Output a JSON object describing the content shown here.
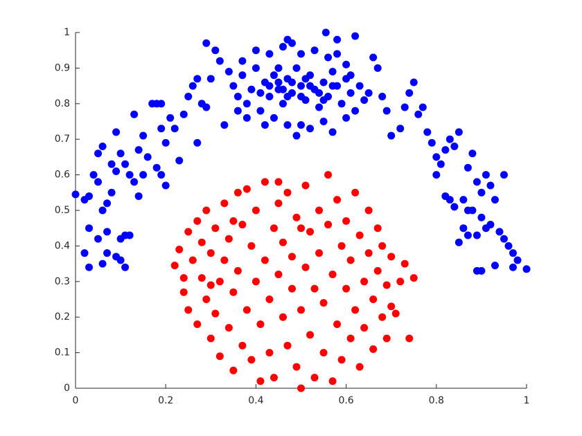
{
  "chart_data": {
    "type": "scatter",
    "xlim": [
      0,
      1
    ],
    "ylim": [
      0,
      1
    ],
    "xticks": [
      0,
      0.2,
      0.4,
      0.6,
      0.8,
      1
    ],
    "yticks": [
      0,
      0.1,
      0.2,
      0.3,
      0.4,
      0.5,
      0.6,
      0.7,
      0.8,
      0.9,
      1
    ],
    "series": [
      {
        "color": "#0000ff",
        "x": [
          0,
          0.02,
          0.03,
          0.02,
          0.03,
          0.06,
          0.07,
          0.05,
          0.03,
          0.09,
          0.1,
          0.11,
          0.1,
          0.11,
          0.12,
          0.07,
          0.06,
          0.07,
          0.08,
          0.05,
          0.04,
          0.08,
          0.09,
          0.1,
          0.11,
          0.12,
          0.13,
          0.14,
          0.15,
          0.14,
          0.16,
          0.15,
          0.13,
          0.06,
          0.05,
          0.09,
          0.18,
          0.19,
          0.2,
          0.2,
          0.19,
          0.22,
          0.23,
          0.17,
          0.18,
          0.19,
          0.21,
          0.24,
          0.25,
          0.26,
          0.27,
          0.28,
          0.27,
          0.29,
          0.29,
          0.3,
          0.31,
          0.32,
          0.33,
          0.34,
          0.35,
          0.36,
          0.37,
          0.38,
          0.39,
          0.4,
          0.41,
          0.42,
          0.43,
          0.44,
          0.45,
          0.46,
          0.47,
          0.48,
          0.49,
          0.5,
          0.51,
          0.52,
          0.53,
          0.54,
          0.55,
          0.56,
          0.57,
          0.58,
          0.59,
          0.6,
          0.61,
          0.62,
          0.63,
          0.64,
          0.4,
          0.43,
          0.46,
          0.48,
          0.5,
          0.53,
          0.555,
          0.56,
          0.58,
          0.6,
          0.38,
          0.42,
          0.44,
          0.47,
          0.49,
          0.5,
          0.52,
          0.55,
          0.57,
          0.6,
          0.36,
          0.37,
          0.41,
          0.45,
          0.47,
          0.51,
          0.54,
          0.57,
          0.61,
          0.65,
          0.45,
          0.46,
          0.48,
          0.5,
          0.52,
          0.43,
          0.55,
          0.62,
          0.58,
          0.47,
          0.66,
          0.67,
          0.68,
          0.69,
          0.7,
          0.72,
          0.73,
          0.74,
          0.75,
          0.76,
          0.77,
          0.78,
          0.79,
          0.8,
          0.81,
          0.82,
          0.83,
          0.84,
          0.85,
          0.8,
          0.82,
          0.83,
          0.86,
          0.87,
          0.88,
          0.89,
          0.9,
          0.91,
          0.92,
          0.93,
          0.95,
          0.88,
          0.9,
          0.91,
          0.86,
          0.87,
          0.85,
          0.89,
          0.92,
          0.94,
          0.95,
          0.96,
          0.97,
          0.98,
          1.0,
          0.97,
          0.93,
          0.89,
          0.9,
          0.87,
          0.84
        ],
        "values": [
          0.545,
          0.53,
          0.54,
          0.38,
          0.34,
          0.35,
          0.38,
          0.42,
          0.45,
          0.37,
          0.36,
          0.34,
          0.42,
          0.43,
          0.43,
          0.44,
          0.5,
          0.52,
          0.55,
          0.58,
          0.6,
          0.63,
          0.61,
          0.66,
          0.63,
          0.6,
          0.58,
          0.54,
          0.6,
          0.67,
          0.65,
          0.71,
          0.77,
          0.68,
          0.66,
          0.72,
          0.62,
          0.6,
          0.57,
          0.69,
          0.73,
          0.73,
          0.64,
          0.8,
          0.8,
          0.8,
          0.76,
          0.77,
          0.82,
          0.85,
          0.87,
          0.8,
          0.69,
          0.79,
          0.97,
          0.87,
          0.95,
          0.92,
          0.74,
          0.89,
          0.85,
          0.82,
          0.88,
          0.8,
          0.84,
          0.9,
          0.78,
          0.86,
          0.82,
          0.88,
          0.84,
          0.8,
          0.87,
          0.83,
          0.9,
          0.85,
          0.81,
          0.88,
          0.84,
          0.79,
          0.86,
          0.82,
          0.89,
          0.85,
          0.8,
          0.87,
          0.83,
          0.78,
          0.85,
          0.81,
          0.95,
          0.94,
          0.96,
          0.97,
          0.94,
          0.95,
          1.0,
          0.93,
          0.94,
          0.91,
          0.76,
          0.74,
          0.76,
          0.74,
          0.71,
          0.74,
          0.73,
          0.75,
          0.72,
          0.76,
          0.78,
          0.92,
          0.83,
          0.9,
          0.82,
          0.87,
          0.83,
          0.85,
          0.88,
          0.83,
          0.86,
          0.84,
          0.86,
          0.82,
          0.85,
          0.85,
          0.81,
          0.99,
          0.98,
          0.98,
          0.93,
          0.9,
          0.82,
          0.78,
          0.71,
          0.73,
          0.79,
          0.83,
          0.86,
          0.77,
          0.79,
          0.72,
          0.69,
          0.65,
          0.63,
          0.67,
          0.7,
          0.68,
          0.72,
          0.6,
          0.54,
          0.53,
          0.53,
          0.62,
          0.66,
          0.58,
          0.55,
          0.6,
          0.57,
          0.53,
          0.6,
          0.5,
          0.48,
          0.45,
          0.45,
          0.43,
          0.41,
          0.43,
          0.46,
          0.44,
          0.42,
          0.4,
          0.38,
          0.36,
          0.335,
          0.34,
          0.345,
          0.33,
          0.33,
          0.5,
          0.51
        ]
      },
      {
        "color": "#ff0000",
        "x": [
          0.22,
          0.23,
          0.24,
          0.24,
          0.25,
          0.25,
          0.26,
          0.27,
          0.27,
          0.28,
          0.28,
          0.29,
          0.29,
          0.3,
          0.3,
          0.31,
          0.31,
          0.32,
          0.32,
          0.33,
          0.33,
          0.34,
          0.34,
          0.35,
          0.35,
          0.36,
          0.36,
          0.37,
          0.37,
          0.38,
          0.38,
          0.39,
          0.39,
          0.4,
          0.4,
          0.41,
          0.41,
          0.42,
          0.42,
          0.43,
          0.43,
          0.44,
          0.44,
          0.45,
          0.45,
          0.46,
          0.46,
          0.47,
          0.47,
          0.48,
          0.48,
          0.49,
          0.49,
          0.5,
          0.5,
          0.51,
          0.51,
          0.52,
          0.52,
          0.53,
          0.53,
          0.54,
          0.54,
          0.55,
          0.55,
          0.56,
          0.56,
          0.57,
          0.57,
          0.58,
          0.58,
          0.59,
          0.59,
          0.6,
          0.6,
          0.61,
          0.61,
          0.62,
          0.62,
          0.63,
          0.63,
          0.64,
          0.64,
          0.65,
          0.65,
          0.66,
          0.66,
          0.67,
          0.67,
          0.68,
          0.68,
          0.69,
          0.69,
          0.7,
          0.7,
          0.71,
          0.72,
          0.73,
          0.74,
          0.75,
          0.3,
          0.35,
          0.45,
          0.5
        ],
        "values": [
          0.345,
          0.39,
          0.31,
          0.27,
          0.44,
          0.22,
          0.36,
          0.47,
          0.18,
          0.31,
          0.41,
          0.25,
          0.5,
          0.14,
          0.38,
          0.45,
          0.21,
          0.09,
          0.3,
          0.52,
          0.36,
          0.17,
          0.42,
          0.05,
          0.27,
          0.55,
          0.33,
          0.12,
          0.46,
          0.22,
          0.56,
          0.4,
          0.08,
          0.3,
          0.5,
          0.02,
          0.18,
          0.36,
          0.58,
          0.25,
          0.1,
          0.45,
          0.03,
          0.32,
          0.52,
          0.2,
          0.41,
          0.12,
          0.55,
          0.28,
          0.37,
          0.06,
          0.48,
          0.0,
          0.22,
          0.34,
          0.57,
          0.15,
          0.44,
          0.03,
          0.28,
          0.5,
          0.38,
          0.1,
          0.24,
          0.6,
          0.46,
          0.32,
          0.02,
          0.18,
          0.53,
          0.4,
          0.08,
          0.28,
          0.47,
          0.14,
          0.36,
          0.55,
          0.22,
          0.06,
          0.43,
          0.3,
          0.17,
          0.5,
          0.38,
          0.11,
          0.25,
          0.45,
          0.33,
          0.2,
          0.4,
          0.14,
          0.29,
          0.37,
          0.23,
          0.21,
          0.3,
          0.35,
          0.14,
          0.31,
          0.29,
          0.47,
          0.58,
          0.45
        ]
      }
    ]
  }
}
